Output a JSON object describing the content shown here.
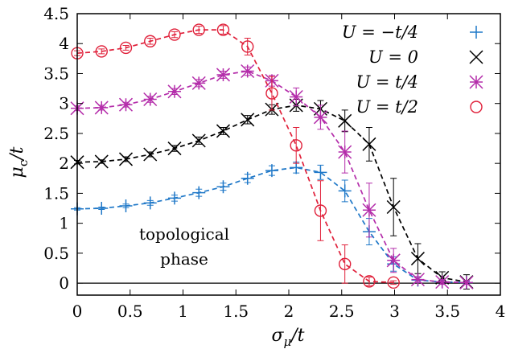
{
  "chart_data": {
    "type": "scatter",
    "title": "",
    "xlabel": "σ_μ/t",
    "ylabel": "μ_c/t",
    "xlim": [
      0,
      4
    ],
    "ylim": [
      -0.2,
      4.5
    ],
    "xticks": [
      "0",
      "0.5",
      "1",
      "1.5",
      "2",
      "2.5",
      "3",
      "3.5",
      "4"
    ],
    "yticks": [
      "0",
      "0.5",
      "1",
      "1.5",
      "2",
      "2.5",
      "3",
      "3.5",
      "4",
      "4.5"
    ],
    "grid": false,
    "legend_position": "top-right",
    "annotation": [
      "topological",
      "phase"
    ],
    "series": [
      {
        "name": "U = −t/4",
        "color": "#1f78c8",
        "marker": "plus",
        "x": [
          0,
          0.23,
          0.46,
          0.69,
          0.92,
          1.15,
          1.38,
          1.61,
          1.84,
          2.07,
          2.3,
          2.53,
          2.76,
          2.99,
          3.22,
          3.45,
          3.68
        ],
        "y": [
          1.24,
          1.25,
          1.29,
          1.34,
          1.42,
          1.51,
          1.61,
          1.75,
          1.88,
          1.93,
          1.85,
          1.54,
          0.86,
          0.32,
          0.05,
          0.02,
          0.01
        ],
        "err": [
          0.02,
          0.02,
          0.03,
          0.04,
          0.05,
          0.06,
          0.06,
          0.07,
          0.08,
          0.09,
          0.12,
          0.18,
          0.22,
          0.12,
          0.04,
          0.03,
          0.02
        ]
      },
      {
        "name": "U = 0",
        "color": "#000000",
        "marker": "x",
        "x": [
          0,
          0.23,
          0.46,
          0.69,
          0.92,
          1.15,
          1.38,
          1.61,
          1.84,
          2.07,
          2.3,
          2.53,
          2.76,
          2.99,
          3.22,
          3.45,
          3.68
        ],
        "y": [
          2.02,
          2.03,
          2.07,
          2.15,
          2.25,
          2.38,
          2.54,
          2.73,
          2.9,
          2.97,
          2.91,
          2.71,
          2.32,
          1.27,
          0.41,
          0.09,
          0.02
        ],
        "err": [
          0.03,
          0.03,
          0.04,
          0.04,
          0.05,
          0.06,
          0.06,
          0.07,
          0.08,
          0.1,
          0.14,
          0.18,
          0.28,
          0.48,
          0.25,
          0.1,
          0.12
        ]
      },
      {
        "name": "U = t/4",
        "color": "#b42daa",
        "marker": "star",
        "x": [
          0,
          0.23,
          0.46,
          0.69,
          0.92,
          1.15,
          1.38,
          1.61,
          1.84,
          2.07,
          2.3,
          2.53,
          2.76,
          2.99,
          3.22,
          3.45,
          3.68
        ],
        "y": [
          2.92,
          2.93,
          2.98,
          3.07,
          3.2,
          3.34,
          3.48,
          3.54,
          3.38,
          3.11,
          2.77,
          2.19,
          1.22,
          0.38,
          0.06,
          0.02,
          0.01
        ],
        "err": [
          0.04,
          0.04,
          0.04,
          0.05,
          0.05,
          0.06,
          0.06,
          0.07,
          0.09,
          0.15,
          0.2,
          0.35,
          0.45,
          0.2,
          0.05,
          0.04,
          0.03
        ]
      },
      {
        "name": "U = t/2",
        "color": "#e0203a",
        "marker": "circle",
        "x": [
          0,
          0.23,
          0.46,
          0.69,
          0.92,
          1.15,
          1.38,
          1.61,
          1.84,
          2.07,
          2.3,
          2.53,
          2.76,
          2.99
        ],
        "y": [
          3.84,
          3.87,
          3.93,
          4.04,
          4.15,
          4.23,
          4.23,
          3.95,
          3.17,
          2.3,
          1.21,
          0.32,
          0.03,
          0.01
        ],
        "err": [
          0.04,
          0.04,
          0.04,
          0.05,
          0.05,
          0.06,
          0.07,
          0.14,
          0.28,
          0.3,
          0.5,
          0.32,
          0.07,
          0.03
        ]
      }
    ]
  }
}
